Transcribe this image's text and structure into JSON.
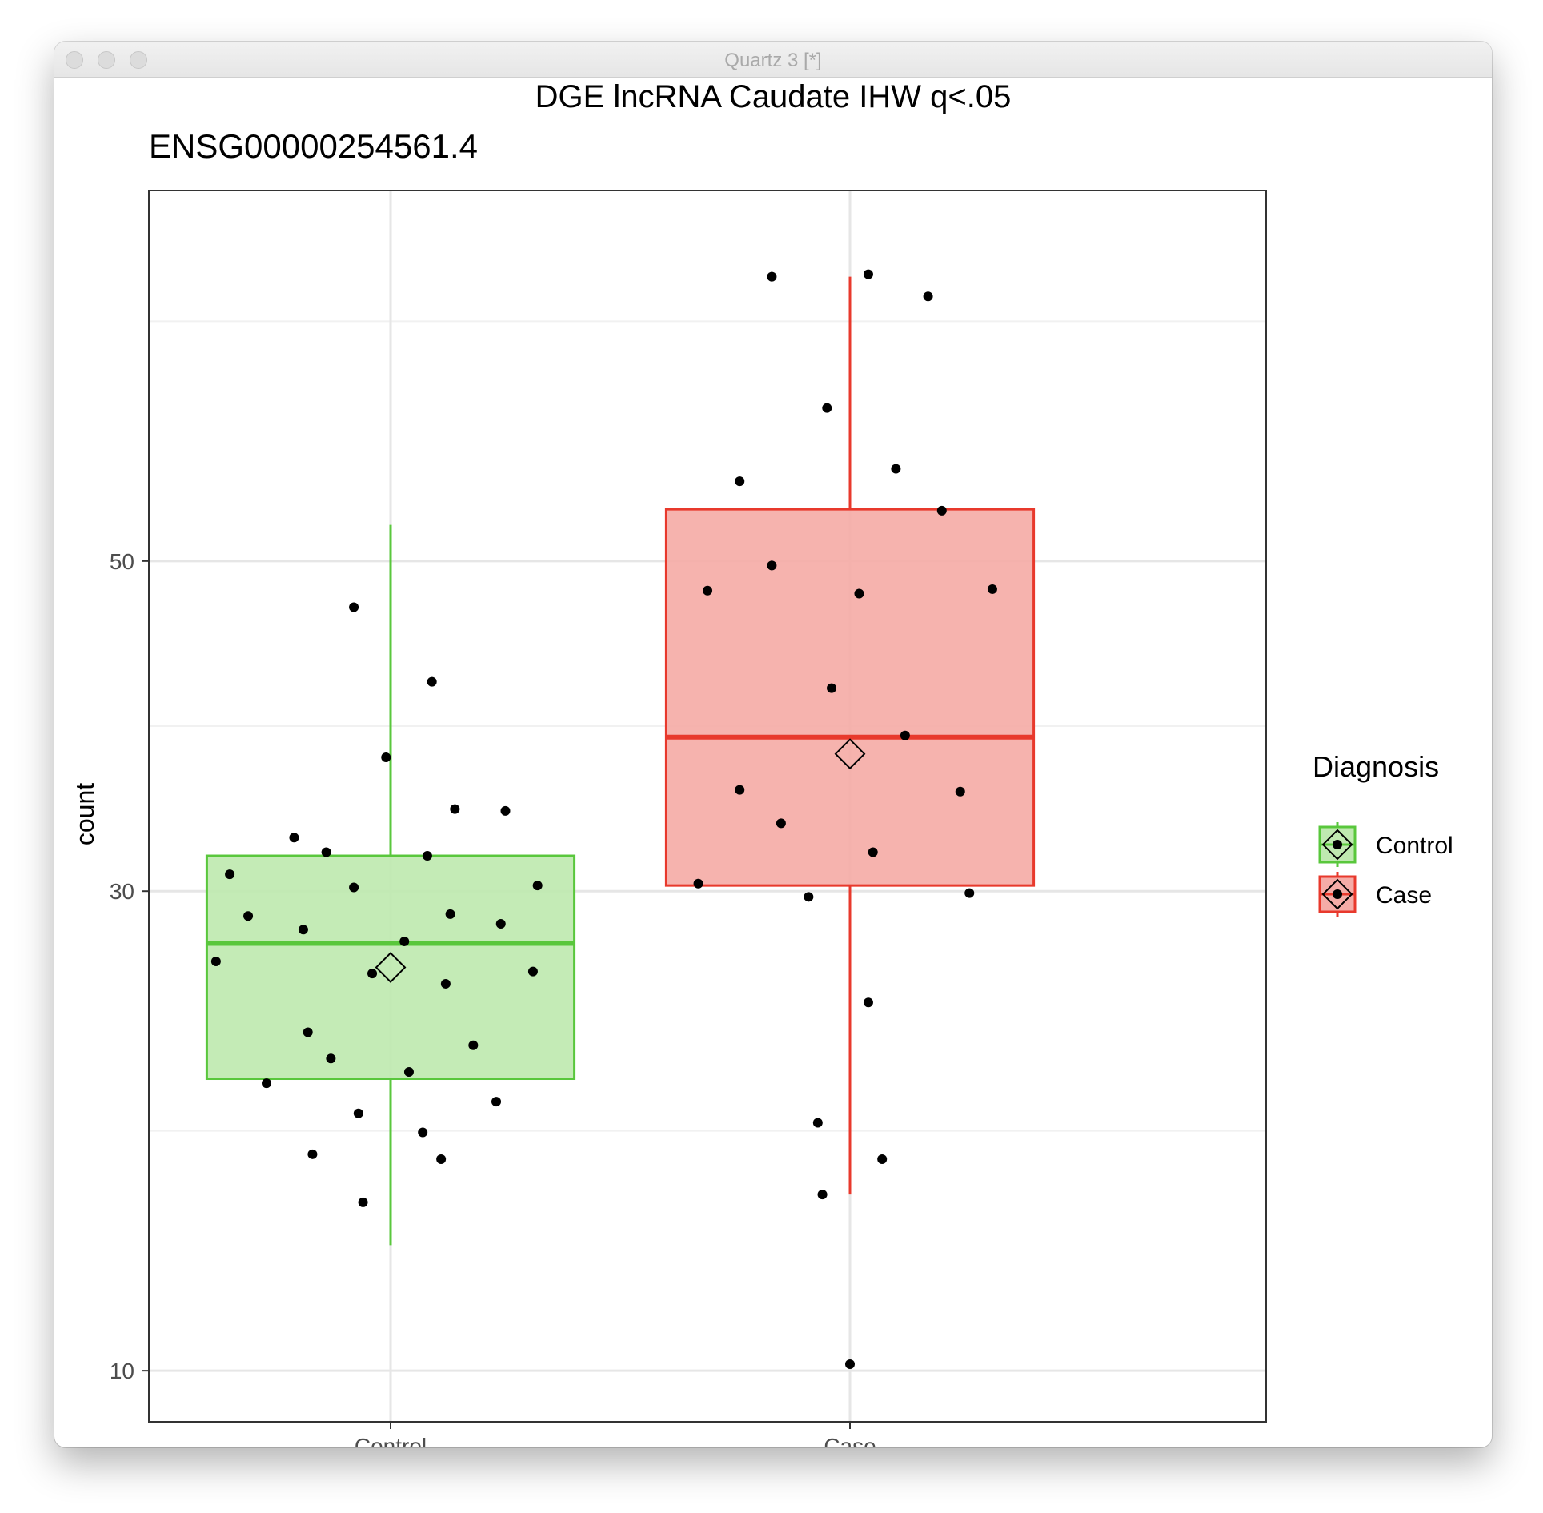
{
  "window": {
    "title": "Quartz 3 [*]"
  },
  "chart_data": {
    "type": "box",
    "title": "DGE lncRNA Caudate IHW q<.05",
    "subtitle": "ENSG00000254561.4",
    "xlabel": "",
    "ylabel": "count",
    "y_scale": "sqrt",
    "ylim": [
      8.5,
      78.5
    ],
    "y_ticks": [
      10,
      30,
      50
    ],
    "categories": [
      "Control",
      "Case"
    ],
    "grid": true,
    "legend": {
      "title": "Diagnosis",
      "position": "right",
      "entries": [
        "Control",
        "Case"
      ]
    },
    "colors": {
      "Control": {
        "line": "#59c73c",
        "fill": "#bfe9b0"
      },
      "Case": {
        "line": "#e8392c",
        "fill": "#f5aca7"
      }
    },
    "boxes": [
      {
        "name": "Control",
        "whisker_low": 14.2,
        "q1": 20.9,
        "median": 27.3,
        "q3": 31.9,
        "whisker_high": 52.5,
        "mean": 26.1,
        "points": [
          {
            "x": -0.38,
            "y": 26.4
          },
          {
            "x": -0.35,
            "y": 30.9
          },
          {
            "x": -0.31,
            "y": 28.7
          },
          {
            "x": -0.27,
            "y": 20.7
          },
          {
            "x": -0.21,
            "y": 32.9
          },
          {
            "x": -0.19,
            "y": 28.0
          },
          {
            "x": -0.18,
            "y": 23.0
          },
          {
            "x": -0.17,
            "y": 17.7
          },
          {
            "x": -0.14,
            "y": 32.1
          },
          {
            "x": -0.13,
            "y": 21.8
          },
          {
            "x": -0.08,
            "y": 46.9
          },
          {
            "x": -0.08,
            "y": 30.2
          },
          {
            "x": -0.07,
            "y": 19.4
          },
          {
            "x": -0.06,
            "y": 15.8
          },
          {
            "x": -0.04,
            "y": 25.8
          },
          {
            "x": -0.01,
            "y": 37.5
          },
          {
            "x": 0.03,
            "y": 27.4
          },
          {
            "x": 0.04,
            "y": 21.2
          },
          {
            "x": 0.07,
            "y": 18.6
          },
          {
            "x": 0.08,
            "y": 31.9
          },
          {
            "x": 0.09,
            "y": 42.1
          },
          {
            "x": 0.11,
            "y": 17.5
          },
          {
            "x": 0.12,
            "y": 25.3
          },
          {
            "x": 0.13,
            "y": 28.8
          },
          {
            "x": 0.14,
            "y": 34.5
          },
          {
            "x": 0.18,
            "y": 22.4
          },
          {
            "x": 0.23,
            "y": 19.9
          },
          {
            "x": 0.24,
            "y": 28.3
          },
          {
            "x": 0.25,
            "y": 34.4
          },
          {
            "x": 0.31,
            "y": 25.9
          },
          {
            "x": 0.32,
            "y": 30.3
          }
        ]
      },
      {
        "name": "Case",
        "whisker_low": 16.1,
        "q1": 30.3,
        "median": 38.7,
        "q3": 53.6,
        "whisker_high": 71.3,
        "mean": 37.7,
        "points": [
          {
            "x": -0.33,
            "y": 30.4
          },
          {
            "x": -0.31,
            "y": 48.0
          },
          {
            "x": -0.24,
            "y": 55.6
          },
          {
            "x": -0.24,
            "y": 35.6
          },
          {
            "x": -0.17,
            "y": 49.7
          },
          {
            "x": -0.17,
            "y": 71.3
          },
          {
            "x": -0.15,
            "y": 33.7
          },
          {
            "x": -0.09,
            "y": 29.7
          },
          {
            "x": -0.07,
            "y": 19.0
          },
          {
            "x": -0.06,
            "y": 16.1
          },
          {
            "x": -0.05,
            "y": 61.0
          },
          {
            "x": -0.04,
            "y": 41.7
          },
          {
            "x": 0.0,
            "y": 10.2
          },
          {
            "x": 0.02,
            "y": 47.8
          },
          {
            "x": 0.04,
            "y": 71.5
          },
          {
            "x": 0.04,
            "y": 24.4
          },
          {
            "x": 0.05,
            "y": 32.1
          },
          {
            "x": 0.07,
            "y": 17.5
          },
          {
            "x": 0.1,
            "y": 56.5
          },
          {
            "x": 0.12,
            "y": 38.8
          },
          {
            "x": 0.17,
            "y": 69.7
          },
          {
            "x": 0.2,
            "y": 53.5
          },
          {
            "x": 0.24,
            "y": 35.5
          },
          {
            "x": 0.26,
            "y": 29.9
          },
          {
            "x": 0.31,
            "y": 48.1
          }
        ]
      }
    ]
  }
}
